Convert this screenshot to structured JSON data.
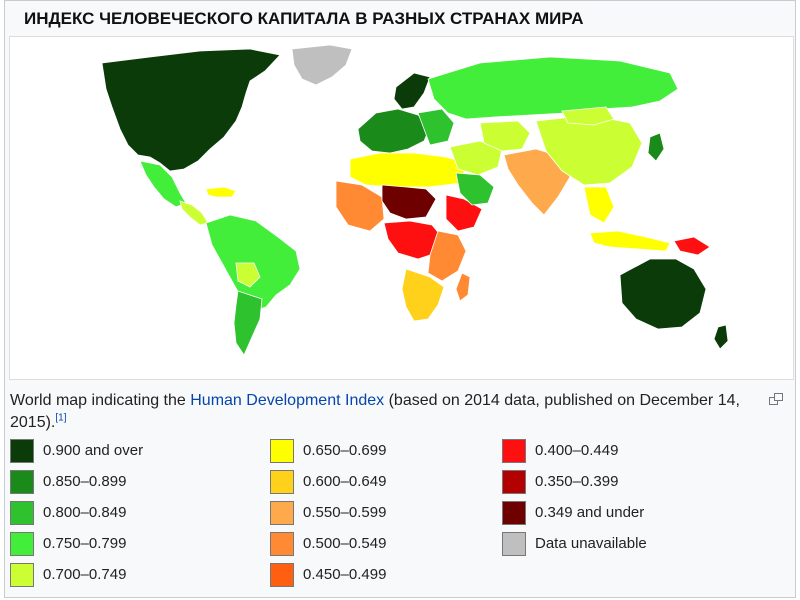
{
  "slide": {
    "title": "ИНДЕКС ЧЕЛОВЕЧЕСКОГО КАПИТАЛА В РАЗНЫХ СТРАНАХ МИРА"
  },
  "caption": {
    "text_before": "World map indicating the ",
    "link_text": "Human Development Index",
    "text_after": " (based on 2014 data, published on December 14, 2015).",
    "ref": "[1]"
  },
  "icons": {
    "enlarge": "enlarge-icon"
  },
  "legend": {
    "columns": [
      [
        {
          "label": "0.900 and over",
          "color": "#0b3b08"
        },
        {
          "label": "0.850–0.899",
          "color": "#1a8a1a"
        },
        {
          "label": "0.800–0.849",
          "color": "#2fc22f"
        },
        {
          "label": "0.750–0.799",
          "color": "#43ee3b"
        },
        {
          "label": "0.700–0.749",
          "color": "#ccff33"
        }
      ],
      [
        {
          "label": "0.650–0.699",
          "color": "#ffff00"
        },
        {
          "label": "0.600–0.649",
          "color": "#ffd11a"
        },
        {
          "label": "0.550–0.599",
          "color": "#ffa94d"
        },
        {
          "label": "0.500–0.549",
          "color": "#ff8a33"
        },
        {
          "label": "0.450–0.499",
          "color": "#ff5f10"
        }
      ],
      [
        {
          "label": "0.400–0.449",
          "color": "#ff1010"
        },
        {
          "label": "0.350–0.399",
          "color": "#b30000"
        },
        {
          "label": "0.349 and under",
          "color": "#6e0000"
        },
        {
          "label": "Data unavailable",
          "color": "#bfbfbf"
        }
      ]
    ]
  },
  "map": {
    "regions": [
      {
        "name": "north-america",
        "color": "#0b3b08"
      },
      {
        "name": "greenland",
        "color": "#bfbfbf"
      },
      {
        "name": "mexico",
        "color": "#43ee3b"
      },
      {
        "name": "central-america",
        "color": "#ccff33"
      },
      {
        "name": "caribbean",
        "color": "#ffff00"
      },
      {
        "name": "south-america",
        "color": "#43ee3b"
      },
      {
        "name": "bolivia",
        "color": "#ccff33"
      },
      {
        "name": "southern-cone",
        "color": "#2fc22f"
      },
      {
        "name": "europe",
        "color": "#1a8a1a"
      },
      {
        "name": "scandinavia",
        "color": "#0b3b08"
      },
      {
        "name": "eastern-europe",
        "color": "#2fc22f"
      },
      {
        "name": "russia",
        "color": "#43ee3b"
      },
      {
        "name": "north-africa",
        "color": "#ffff00"
      },
      {
        "name": "west-africa",
        "color": "#ff8a33"
      },
      {
        "name": "sahel",
        "color": "#6e0000"
      },
      {
        "name": "horn-of-africa",
        "color": "#ff1010"
      },
      {
        "name": "central-africa",
        "color": "#ff1010"
      },
      {
        "name": "east-africa",
        "color": "#ff8a33"
      },
      {
        "name": "southern-africa",
        "color": "#ffd11a"
      },
      {
        "name": "madagascar",
        "color": "#ff8a33"
      },
      {
        "name": "middle-east",
        "color": "#ccff33"
      },
      {
        "name": "arabia",
        "color": "#2fc22f"
      },
      {
        "name": "central-asia",
        "color": "#ccff33"
      },
      {
        "name": "south-asia",
        "color": "#ffa94d"
      },
      {
        "name": "china",
        "color": "#ccff33"
      },
      {
        "name": "mongolia",
        "color": "#ccff33"
      },
      {
        "name": "japan",
        "color": "#1a8a1a"
      },
      {
        "name": "southeast-asia",
        "color": "#ffff00"
      },
      {
        "name": "indonesia",
        "color": "#ffff00"
      },
      {
        "name": "papua-new-guinea",
        "color": "#ff1010"
      },
      {
        "name": "australia",
        "color": "#0b3b08"
      },
      {
        "name": "new-zealand",
        "color": "#0b3b08"
      }
    ]
  }
}
